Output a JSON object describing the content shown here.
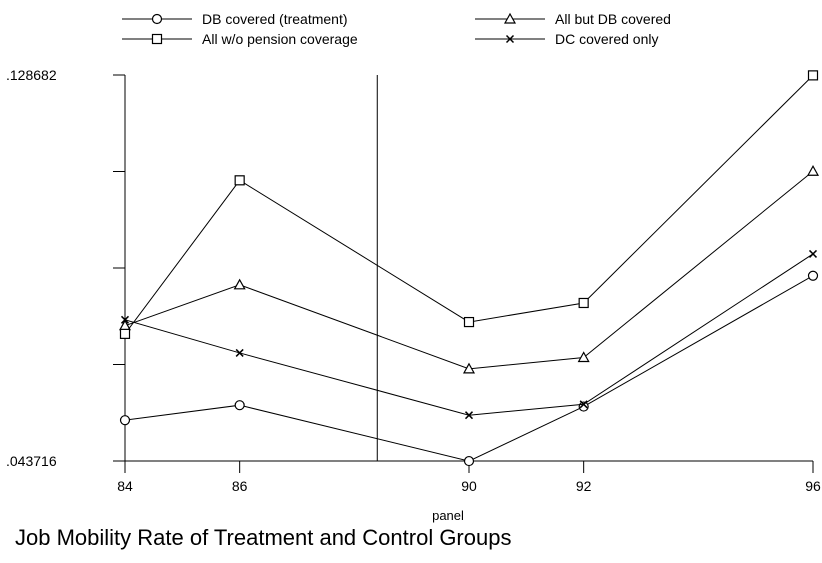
{
  "chart_data": {
    "type": "line",
    "title": "Job Mobility Rate of Treatment and Control Groups",
    "xlabel": "panel",
    "ylabel": "",
    "x": [
      84,
      86,
      90,
      92,
      96
    ],
    "x_tick_labels": [
      "84",
      "86",
      "90",
      "92",
      "96"
    ],
    "xlim": [
      84,
      96
    ],
    "ylim": [
      0.043716,
      0.128682
    ],
    "y_tick_labels": [
      ".128682",
      ".043716"
    ],
    "y_ticks": [
      0.043716,
      0.0649575,
      0.086199,
      0.1074405,
      0.128682
    ],
    "grid": false,
    "legend_position": "top",
    "reference_line_x": 88.4,
    "series": [
      {
        "name": "DB covered (treatment)",
        "marker": "circle",
        "values": [
          0.0527,
          0.056,
          0.0437,
          0.0557,
          0.0845
        ]
      },
      {
        "name": "All but DB covered",
        "marker": "triangle",
        "values": [
          0.0735,
          0.0825,
          0.064,
          0.0665,
          0.1075
        ]
      },
      {
        "name": "All w/o pension coverage",
        "marker": "square",
        "values": [
          0.0717,
          0.1055,
          0.0743,
          0.0785,
          0.1286
        ]
      },
      {
        "name": "DC covered only",
        "marker": "x",
        "values": [
          0.0748,
          0.0675,
          0.0538,
          0.0562,
          0.0893
        ]
      }
    ]
  }
}
